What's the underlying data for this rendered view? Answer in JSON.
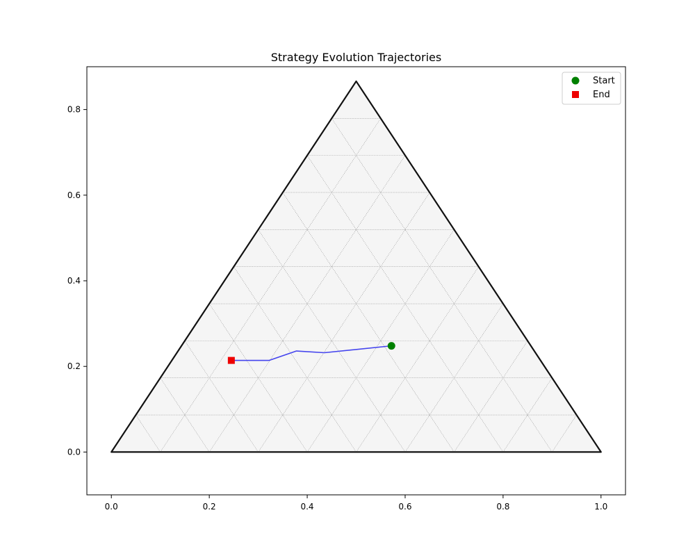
{
  "chart_data": {
    "type": "scatter",
    "title": "Strategy Evolution Trajectories",
    "xlabel": "",
    "ylabel": "",
    "xlim": [
      -0.05,
      1.05
    ],
    "ylim": [
      -0.1,
      0.9
    ],
    "x_ticks": [
      "0.0",
      "0.2",
      "0.4",
      "0.6",
      "0.8",
      "1.0"
    ],
    "y_ticks": [
      "0.0",
      "0.2",
      "0.4",
      "0.6",
      "0.8"
    ],
    "x_tick_values": [
      0.0,
      0.2,
      0.4,
      0.6,
      0.8,
      1.0
    ],
    "y_tick_values": [
      0.0,
      0.2,
      0.4,
      0.6,
      0.8
    ],
    "simplex": {
      "vertices": [
        [
          0.0,
          0.0
        ],
        [
          1.0,
          0.0
        ],
        [
          0.5,
          0.866
        ]
      ],
      "grid_divisions": 10
    },
    "trajectory": {
      "color": "#4444ee",
      "points": [
        [
          0.572,
          0.248
        ],
        [
          0.435,
          0.232
        ],
        [
          0.378,
          0.236
        ],
        [
          0.322,
          0.214
        ],
        [
          0.245,
          0.214
        ]
      ]
    },
    "start_point": {
      "label": "Start",
      "x": 0.572,
      "y": 0.248,
      "color": "#008000"
    },
    "end_point": {
      "label": "End",
      "x": 0.245,
      "y": 0.214,
      "color": "#ee0000"
    },
    "legend": {
      "position": "top-right",
      "entries": [
        {
          "label": "Start",
          "marker": "circle",
          "color": "#008000"
        },
        {
          "label": "End",
          "marker": "square",
          "color": "#ee0000"
        }
      ]
    },
    "colors": {
      "triangle_fill": "#f5f5f5",
      "triangle_edge": "#111111",
      "grid": "#999999"
    }
  }
}
